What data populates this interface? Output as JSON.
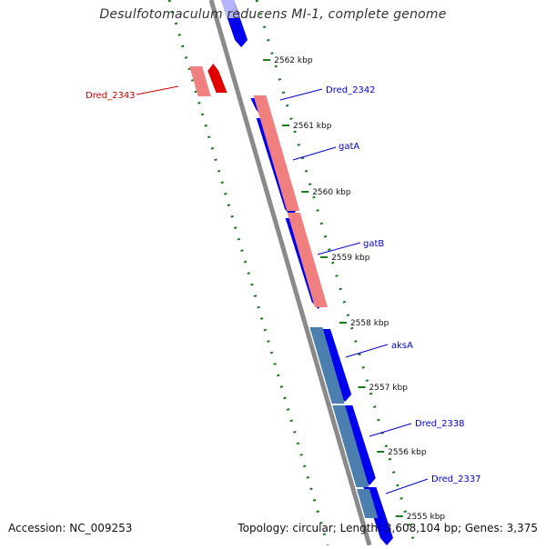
{
  "title": "Desulfotomaculum reducens MI-1, complete genome",
  "footer": {
    "accession": "Accession: NC_009253",
    "summary": "Topology: circular; Length: 3,608,104 bp; Genes: 3,375"
  },
  "colors": {
    "backbone": "#8a8a8a",
    "forward_cds": "#0000ee",
    "rna_highlight": "#f08080",
    "rna_dark": "#e00000",
    "steelblue": "#4a7fb0",
    "tick_green": "#1a7a1a",
    "label_blue": "#0000cc",
    "label_red": "#cc0000"
  },
  "scale_ticks": [
    {
      "label": "2562 kbp"
    },
    {
      "label": "2561 kbp"
    },
    {
      "label": "2560 kbp"
    },
    {
      "label": "2559 kbp"
    },
    {
      "label": "2558 kbp"
    },
    {
      "label": "2557 kbp"
    },
    {
      "label": "2556 kbp"
    },
    {
      "label": "2555 kbp"
    }
  ],
  "gene_labels": [
    {
      "name": "Dred_2343",
      "color": "red"
    },
    {
      "name": "Dred_2342",
      "color": "blue"
    },
    {
      "name": "gatA",
      "color": "blue"
    },
    {
      "name": "gatB",
      "color": "blue"
    },
    {
      "name": "aksA",
      "color": "blue"
    },
    {
      "name": "Dred_2338",
      "color": "blue"
    },
    {
      "name": "Dred_2337",
      "color": "blue"
    }
  ]
}
